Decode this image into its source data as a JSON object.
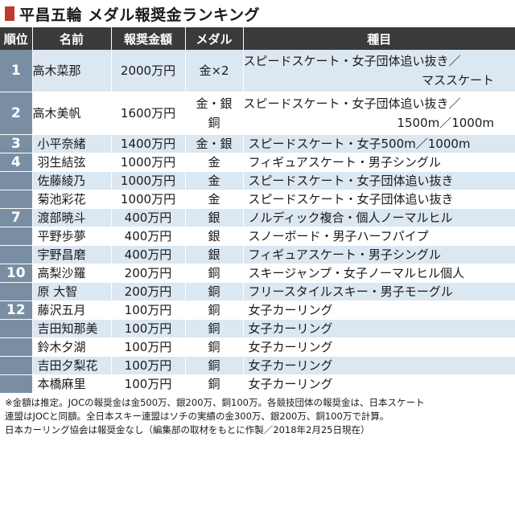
{
  "title": "平昌五輪 メダル報奨金ランキング",
  "header": {
    "rank": "順位",
    "name": "名前",
    "amount": "報奨金額",
    "medal": "メダル",
    "event": "種目"
  },
  "rows": [
    {
      "rank": "1",
      "name": "高木菜那",
      "amount": "2000万円",
      "medal1": "金×2",
      "medal2": "",
      "event1": "スピードスケート・女子団体追い抜き／",
      "event2": "マススケート"
    },
    {
      "rank": "2",
      "name": "高木美帆",
      "amount": "1600万円",
      "medal1": "金・銀",
      "medal2": "銅",
      "event1": "スピードスケート・女子団体追い抜き／",
      "event2": "1500m／1000m"
    },
    {
      "rank": "3",
      "name": "小平奈緒",
      "amount": "1400万円",
      "medal1": "金・銀",
      "medal2": "",
      "event1": "スピードスケート・女子500m／1000m",
      "event2": ""
    },
    {
      "rank": "4",
      "name": "羽生結弦",
      "amount": "1000万円",
      "medal1": "金",
      "medal2": "",
      "event1": "フィギュアスケート・男子シングル",
      "event2": ""
    },
    {
      "rank": "",
      "name": "佐藤綾乃",
      "amount": "1000万円",
      "medal1": "金",
      "medal2": "",
      "event1": "スピードスケート・女子団体追い抜き",
      "event2": ""
    },
    {
      "rank": "",
      "name": "菊池彩花",
      "amount": "1000万円",
      "medal1": "金",
      "medal2": "",
      "event1": "スピードスケート・女子団体追い抜き",
      "event2": ""
    },
    {
      "rank": "7",
      "name": "渡部暁斗",
      "amount": "400万円",
      "medal1": "銀",
      "medal2": "",
      "event1": "ノルディック複合・個人ノーマルヒル",
      "event2": ""
    },
    {
      "rank": "",
      "name": "平野歩夢",
      "amount": "400万円",
      "medal1": "銀",
      "medal2": "",
      "event1": "スノーボード・男子ハーフパイプ",
      "event2": ""
    },
    {
      "rank": "",
      "name": "宇野昌磨",
      "amount": "400万円",
      "medal1": "銀",
      "medal2": "",
      "event1": "フィギュアスケート・男子シングル",
      "event2": ""
    },
    {
      "rank": "10",
      "name": "高梨沙羅",
      "amount": "200万円",
      "medal1": "銅",
      "medal2": "",
      "event1": "スキージャンプ・女子ノーマルヒル個人",
      "event2": ""
    },
    {
      "rank": "",
      "name": "原 大智",
      "amount": "200万円",
      "medal1": "銅",
      "medal2": "",
      "event1": "フリースタイルスキー・男子モーグル",
      "event2": ""
    },
    {
      "rank": "12",
      "name": "藤沢五月",
      "amount": "100万円",
      "medal1": "銅",
      "medal2": "",
      "event1": "女子カーリング",
      "event2": ""
    },
    {
      "rank": "",
      "name": "吉田知那美",
      "amount": "100万円",
      "medal1": "銅",
      "medal2": "",
      "event1": "女子カーリング",
      "event2": ""
    },
    {
      "rank": "",
      "name": "鈴木夕湖",
      "amount": "100万円",
      "medal1": "銅",
      "medal2": "",
      "event1": "女子カーリング",
      "event2": ""
    },
    {
      "rank": "",
      "name": "吉田夕梨花",
      "amount": "100万円",
      "medal1": "銅",
      "medal2": "",
      "event1": "女子カーリング",
      "event2": ""
    },
    {
      "rank": "",
      "name": "本橋麻里",
      "amount": "100万円",
      "medal1": "銅",
      "medal2": "",
      "event1": "女子カーリング",
      "event2": ""
    }
  ],
  "notes": [
    "※金額は推定。JOCの報奨金は金500万、銀200万、銅100万。各競技団体の報奨金は、日本スケート",
    "連盟はJOCと同額。全日本スキー連盟はソチの実績の金300万、銀200万、銅100万で計算。",
    "日本カーリング協会は報奨金なし（編集部の取材をもとに作製／2018年2月25日現在）"
  ],
  "colors": {
    "header_bg": "#3a3a3a",
    "rank_bg": "#7a8ea3",
    "stripe_bg": "#dbe7f1",
    "title_mark": "#c0392b"
  }
}
